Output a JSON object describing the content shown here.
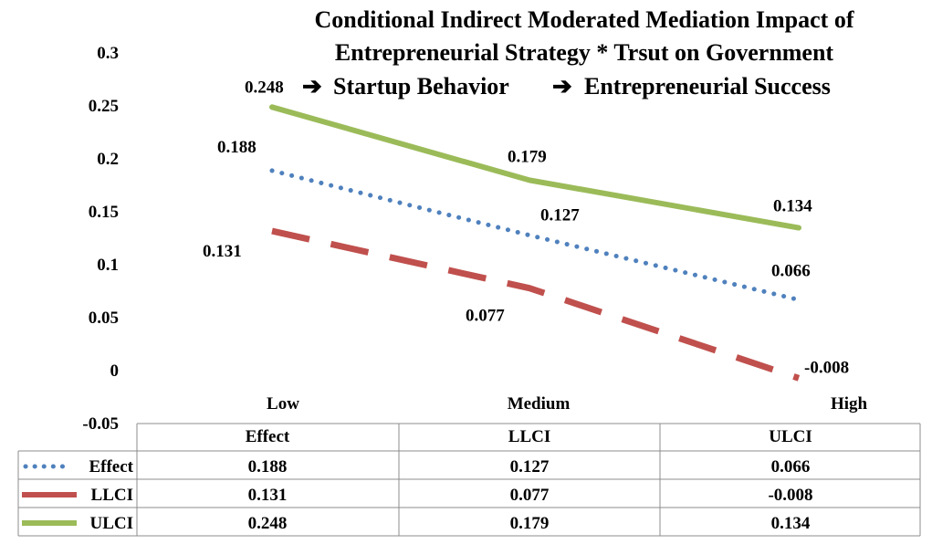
{
  "chart_data": {
    "type": "line",
    "title_lines": [
      "Conditional Indirect Moderated Mediation Impact of",
      "Entrepreneurial Strategy * Trsut on Government",
      "Startup Behavior",
      "Entrepreneurial Success"
    ],
    "categories": [
      "Low",
      "Medium",
      "High"
    ],
    "ylim": [
      -0.05,
      0.3
    ],
    "yticks": [
      "0.3",
      "0.25",
      "0.2",
      "0.15",
      "0.1",
      "0.05",
      "0",
      "-0.05"
    ],
    "series": [
      {
        "name": "Effect",
        "values": [
          0.188,
          0.127,
          0.066
        ],
        "labels": [
          "0.188",
          "0.127",
          "0.066"
        ],
        "color": "#4f81bd",
        "style": "dotted"
      },
      {
        "name": "LLCI",
        "values": [
          0.131,
          0.077,
          -0.008
        ],
        "labels": [
          "0.131",
          "0.077",
          "-0.008"
        ],
        "color": "#c0504d",
        "style": "dashed"
      },
      {
        "name": "ULCI",
        "values": [
          0.248,
          0.179,
          0.134
        ],
        "labels": [
          "0.248",
          "0.179",
          "0.134"
        ],
        "color": "#9bbb59",
        "style": "solid"
      }
    ],
    "table": {
      "headers": [
        "Effect",
        "LLCI",
        "ULCI"
      ],
      "rows": [
        {
          "name": "Effect",
          "cells": [
            "0.188",
            "0.127",
            "0.066"
          ]
        },
        {
          "name": "LLCI",
          "cells": [
            "0.131",
            "0.077",
            "-0.008"
          ]
        },
        {
          "name": "ULCI",
          "cells": [
            "0.248",
            "0.179",
            "0.134"
          ]
        }
      ]
    }
  }
}
